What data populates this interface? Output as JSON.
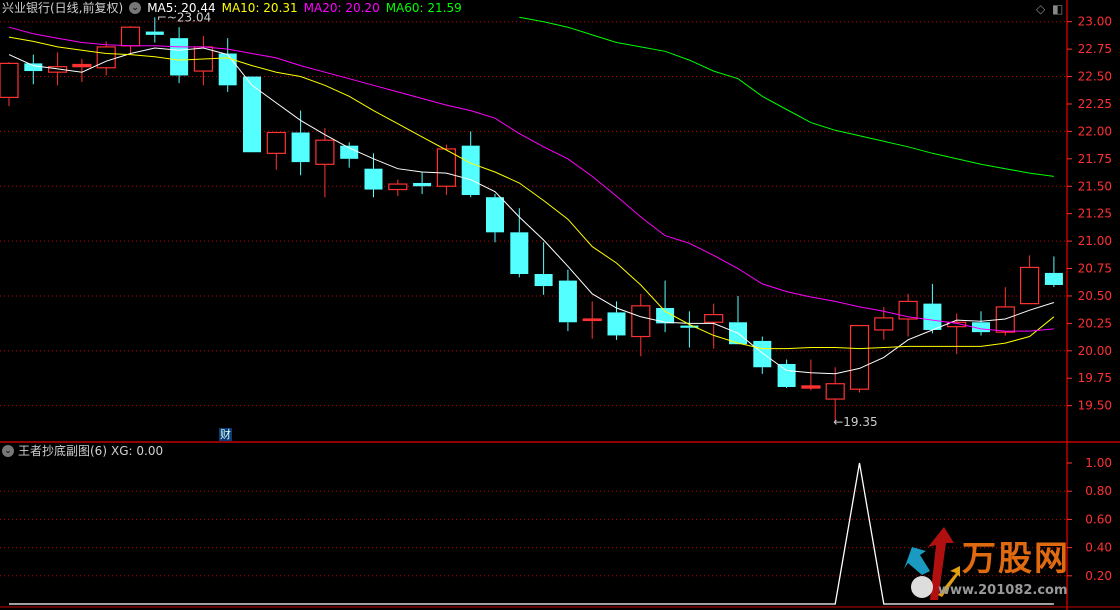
{
  "header": {
    "title": "兴业银行(日线,前复权)",
    "ma_labels": [
      {
        "text": "MA5: 20.44",
        "color": "#ffffff"
      },
      {
        "text": "MA10: 20.31",
        "color": "#ffff00"
      },
      {
        "text": "MA20: 20.20",
        "color": "#ff00ff"
      },
      {
        "text": "MA60: 21.59",
        "color": "#00ff00"
      }
    ]
  },
  "sub_panel": {
    "title": "王者抄底副图(6)",
    "xg_label": "XG: 0.00"
  },
  "badge": "财",
  "logo": {
    "name": "万股网",
    "url": "www.201082.com"
  },
  "colors": {
    "up": "#ff3232",
    "down": "#54ffff",
    "grid": "#c00000",
    "axis": "#ff3232",
    "ma5": "#ffffff",
    "ma10": "#ffff00",
    "ma20": "#ff00ff",
    "ma60": "#00ff00",
    "xg": "#ffffff"
  },
  "chart_data": [
    {
      "type": "candlestick",
      "ylim": [
        19.3,
        23.1
      ],
      "yticks": [
        "23.00",
        "22.75",
        "22.50",
        "22.25",
        "22.00",
        "21.75",
        "21.50",
        "21.25",
        "21.00",
        "20.75",
        "20.50",
        "20.25",
        "20.00",
        "19.75",
        "19.50"
      ],
      "grid": [
        23.0,
        22.5,
        22.0,
        21.5,
        21.0,
        20.5,
        20.0,
        19.5
      ],
      "max_label": "23.04",
      "min_label": "19.35",
      "ohlc": [
        [
          22.31,
          22.63,
          22.23,
          22.62
        ],
        [
          22.62,
          22.7,
          22.43,
          22.55
        ],
        [
          22.54,
          22.72,
          22.42,
          22.59
        ],
        [
          22.59,
          22.66,
          22.45,
          22.61
        ],
        [
          22.58,
          22.82,
          22.51,
          22.77
        ],
        [
          22.78,
          22.96,
          22.71,
          22.95
        ],
        [
          22.91,
          23.04,
          22.81,
          22.88
        ],
        [
          22.85,
          22.95,
          22.44,
          22.51
        ],
        [
          22.55,
          22.87,
          22.42,
          22.77
        ],
        [
          22.71,
          22.85,
          22.36,
          22.42
        ],
        [
          22.5,
          22.5,
          21.81,
          21.81
        ],
        [
          21.8,
          21.99,
          21.65,
          21.99
        ],
        [
          21.99,
          22.19,
          21.6,
          21.72
        ],
        [
          21.7,
          22.03,
          21.4,
          21.92
        ],
        [
          21.87,
          21.9,
          21.67,
          21.75
        ],
        [
          21.66,
          21.8,
          21.4,
          21.47
        ],
        [
          21.47,
          21.56,
          21.41,
          21.52
        ],
        [
          21.53,
          21.63,
          21.43,
          21.5
        ],
        [
          21.5,
          21.88,
          21.42,
          21.84
        ],
        [
          21.87,
          22.0,
          21.4,
          21.42
        ],
        [
          21.4,
          21.43,
          20.99,
          21.08
        ],
        [
          21.08,
          21.3,
          20.67,
          20.7
        ],
        [
          20.7,
          20.99,
          20.51,
          20.59
        ],
        [
          20.64,
          20.74,
          20.18,
          20.26
        ],
        [
          20.28,
          20.45,
          20.11,
          20.29
        ],
        [
          20.35,
          20.45,
          20.1,
          20.14
        ],
        [
          20.13,
          20.52,
          19.95,
          20.41
        ],
        [
          20.39,
          20.64,
          20.17,
          20.25
        ],
        [
          20.23,
          20.36,
          20.03,
          20.21
        ],
        [
          20.26,
          20.43,
          20.02,
          20.33
        ],
        [
          20.26,
          20.5,
          20.06,
          20.06
        ],
        [
          20.09,
          20.13,
          19.79,
          19.85
        ],
        [
          19.88,
          19.92,
          19.66,
          19.67
        ],
        [
          19.66,
          19.92,
          19.64,
          19.68
        ],
        [
          19.56,
          19.85,
          19.35,
          19.7
        ],
        [
          19.65,
          20.23,
          19.62,
          20.23
        ],
        [
          20.19,
          20.4,
          20.1,
          20.3
        ],
        [
          20.29,
          20.52,
          20.13,
          20.45
        ],
        [
          20.43,
          20.61,
          20.16,
          20.19
        ],
        [
          20.22,
          20.34,
          19.97,
          20.26
        ],
        [
          20.26,
          20.36,
          20.14,
          20.17
        ],
        [
          20.17,
          20.58,
          20.14,
          20.4
        ],
        [
          20.43,
          20.87,
          20.43,
          20.76
        ],
        [
          20.71,
          20.86,
          20.58,
          20.6
        ]
      ],
      "series": [
        {
          "name": "MA5",
          "values": [
            22.7,
            22.6,
            22.57,
            22.54,
            22.64,
            22.71,
            22.76,
            22.74,
            22.76,
            22.7,
            22.42,
            22.26,
            22.1,
            21.97,
            21.85,
            21.75,
            21.66,
            21.63,
            21.62,
            21.56,
            21.45,
            21.22,
            21.01,
            20.77,
            20.52,
            20.39,
            20.31,
            20.26,
            20.25,
            20.25,
            20.16,
            19.98,
            19.82,
            19.8,
            19.79,
            19.84,
            19.94,
            20.1,
            20.19,
            20.28,
            20.27,
            20.29,
            20.37,
            20.44
          ]
        },
        {
          "name": "MA10",
          "values": [
            22.86,
            22.82,
            22.77,
            22.74,
            22.71,
            22.7,
            22.68,
            22.65,
            22.66,
            22.67,
            22.6,
            22.54,
            22.5,
            22.42,
            22.32,
            22.19,
            22.07,
            21.95,
            21.83,
            21.71,
            21.63,
            21.53,
            21.37,
            21.2,
            20.95,
            20.8,
            20.6,
            20.36,
            20.24,
            20.14,
            20.07,
            20.02,
            20.02,
            20.03,
            20.03,
            20.02,
            20.03,
            20.04,
            20.04,
            20.04,
            20.04,
            20.07,
            20.13,
            20.31
          ]
        },
        {
          "name": "MA20",
          "values": [
            22.95,
            22.89,
            22.85,
            22.81,
            22.79,
            22.78,
            22.78,
            22.77,
            22.77,
            22.75,
            22.71,
            22.67,
            22.6,
            22.54,
            22.48,
            22.42,
            22.36,
            22.3,
            22.24,
            22.19,
            22.12,
            21.98,
            21.86,
            21.75,
            21.59,
            21.41,
            21.22,
            21.05,
            20.98,
            20.87,
            20.75,
            20.61,
            20.54,
            20.49,
            20.45,
            20.4,
            20.36,
            20.31,
            20.28,
            20.25,
            20.2,
            20.18,
            20.18,
            20.2
          ]
        },
        {
          "name": "MA60",
          "values": [
            null,
            null,
            null,
            null,
            null,
            null,
            null,
            null,
            null,
            null,
            null,
            null,
            null,
            null,
            null,
            null,
            null,
            null,
            null,
            null,
            null,
            23.04,
            23.0,
            22.95,
            22.88,
            22.81,
            22.77,
            22.73,
            22.65,
            22.55,
            22.48,
            22.32,
            22.2,
            22.08,
            22.01,
            21.96,
            21.91,
            21.86,
            21.8,
            21.75,
            21.7,
            21.66,
            21.62,
            21.59
          ]
        }
      ]
    },
    {
      "type": "line",
      "ylim": [
        0,
        1.05
      ],
      "yticks": [
        "1.00",
        "0.80",
        "0.60",
        "0.40",
        "0.20"
      ],
      "grid": [
        0.8,
        0.6,
        0.4,
        0.2
      ],
      "series": [
        {
          "name": "XG",
          "values": [
            0,
            0,
            0,
            0,
            0,
            0,
            0,
            0,
            0,
            0,
            0,
            0,
            0,
            0,
            0,
            0,
            0,
            0,
            0,
            0,
            0,
            0,
            0,
            0,
            0,
            0,
            0,
            0,
            0,
            0,
            0,
            0,
            0,
            0,
            0,
            1,
            0,
            0,
            0,
            0,
            0,
            0,
            0,
            0
          ]
        }
      ]
    }
  ]
}
